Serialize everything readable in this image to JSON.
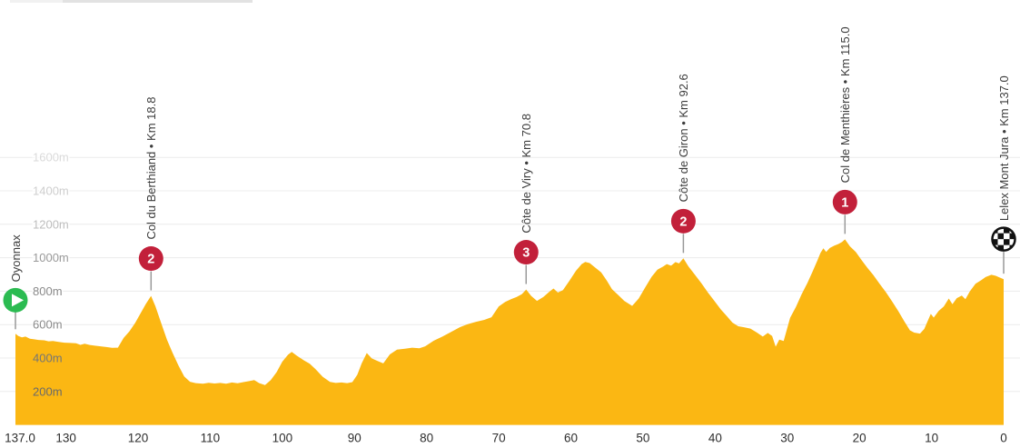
{
  "page": {
    "background": "#ffffff"
  },
  "colors": {
    "profile_fill": "#FBB713",
    "badge_red": "#C2203A",
    "start_green": "#2BBB51",
    "grid_line": "#ECECEC",
    "marker_stem": "#999999",
    "climb_label_text": "#3C3C3C",
    "x_axis_text": "#2E2E2E",
    "finish_flag_dark": "#111111"
  },
  "chart_data": {
    "type": "area",
    "title": "",
    "xlabel": "",
    "ylabel": "",
    "x_axis": {
      "total_km": 137,
      "direction": "km_remaining_left_to_right",
      "ticks": [
        {
          "label": "137.0",
          "remaining_km": 137
        },
        {
          "label": "130",
          "remaining_km": 130
        },
        {
          "label": "120",
          "remaining_km": 120
        },
        {
          "label": "110",
          "remaining_km": 110
        },
        {
          "label": "100",
          "remaining_km": 100
        },
        {
          "label": "90",
          "remaining_km": 90
        },
        {
          "label": "80",
          "remaining_km": 80
        },
        {
          "label": "70",
          "remaining_km": 70
        },
        {
          "label": "60",
          "remaining_km": 60
        },
        {
          "label": "50",
          "remaining_km": 50
        },
        {
          "label": "40",
          "remaining_km": 40
        },
        {
          "label": "30",
          "remaining_km": 30
        },
        {
          "label": "20",
          "remaining_km": 20
        },
        {
          "label": "10",
          "remaining_km": 10
        },
        {
          "label": "0",
          "remaining_km": 0
        }
      ]
    },
    "y_axis": {
      "unit": "m",
      "ticks": [
        {
          "label": "200m",
          "value": 200,
          "color": "#6a6a6a",
          "halo": false
        },
        {
          "label": "400m",
          "value": 400,
          "color": "#757575",
          "halo": false
        },
        {
          "label": "600m",
          "value": 600,
          "color": "#8a8a8a",
          "halo": true
        },
        {
          "label": "800m",
          "value": 800,
          "color": "#8a8a8a",
          "halo": true
        },
        {
          "label": "1000m",
          "value": 1000,
          "color": "#999999",
          "halo": true
        },
        {
          "label": "1200m",
          "value": 1200,
          "color": "#bdbdbd",
          "halo": true
        },
        {
          "label": "1400m",
          "value": 1400,
          "color": "#cecece",
          "halo": true
        },
        {
          "label": "1600m",
          "value": 1600,
          "color": "#dadada",
          "halo": true
        }
      ]
    },
    "start": {
      "name": "Oyonnax",
      "km": 0,
      "icon": "start-play-icon"
    },
    "finish": {
      "name": "Lelex Mont Jura",
      "km": 137.0,
      "label": "Lelex Mont Jura • Km 137.0",
      "icon": "finish-flag-icon"
    },
    "climbs": [
      {
        "name": "Col du Berthiand",
        "km": 18.8,
        "category": "2",
        "label": "Col du Berthiand • Km 18.8"
      },
      {
        "name": "Côte de Viry",
        "km": 70.8,
        "category": "3",
        "label": "Côte de Viry • Km 70.8"
      },
      {
        "name": "Côte de Giron",
        "km": 92.6,
        "category": "2",
        "label": "Côte de Giron • Km 92.6"
      },
      {
        "name": "Col de Menthières",
        "km": 115.0,
        "category": "1",
        "label": "Col de Menthières • Km 115.0"
      }
    ],
    "profile_points_km_elevation": [
      [
        0,
        545
      ],
      [
        0.4,
        532
      ],
      [
        0.9,
        524
      ],
      [
        1.4,
        528
      ],
      [
        2,
        515
      ],
      [
        2.6,
        512
      ],
      [
        3.2,
        508
      ],
      [
        4,
        506
      ],
      [
        4.6,
        500
      ],
      [
        5.2,
        502
      ],
      [
        6,
        496
      ],
      [
        6.8,
        492
      ],
      [
        7.6,
        490
      ],
      [
        8.4,
        488
      ],
      [
        9,
        479
      ],
      [
        9.6,
        486
      ],
      [
        10.3,
        478
      ],
      [
        11,
        474
      ],
      [
        11.8,
        470
      ],
      [
        12.6,
        466
      ],
      [
        13.4,
        461
      ],
      [
        14.2,
        462
      ],
      [
        15,
        520
      ],
      [
        15.8,
        560
      ],
      [
        16.6,
        610
      ],
      [
        17.4,
        672
      ],
      [
        18.1,
        725
      ],
      [
        18.8,
        772
      ],
      [
        19.4,
        710
      ],
      [
        20.2,
        610
      ],
      [
        21,
        510
      ],
      [
        21.8,
        430
      ],
      [
        22.6,
        355
      ],
      [
        23.4,
        290
      ],
      [
        24.2,
        258
      ],
      [
        25,
        250
      ],
      [
        26,
        247
      ],
      [
        26.8,
        252
      ],
      [
        27.6,
        248
      ],
      [
        28.4,
        251
      ],
      [
        29.2,
        246
      ],
      [
        30,
        254
      ],
      [
        30.8,
        249
      ],
      [
        31.6,
        256
      ],
      [
        32.4,
        262
      ],
      [
        33.1,
        268
      ],
      [
        33.8,
        250
      ],
      [
        34.6,
        238
      ],
      [
        35.4,
        268
      ],
      [
        36.2,
        315
      ],
      [
        37,
        378
      ],
      [
        37.8,
        420
      ],
      [
        38.3,
        437
      ],
      [
        39,
        414
      ],
      [
        40,
        386
      ],
      [
        40.8,
        366
      ],
      [
        41.6,
        333
      ],
      [
        42.6,
        288
      ],
      [
        43.6,
        257
      ],
      [
        44.4,
        251
      ],
      [
        45.2,
        254
      ],
      [
        46,
        250
      ],
      [
        46.7,
        256
      ],
      [
        47.4,
        300
      ],
      [
        48,
        368
      ],
      [
        48.7,
        430
      ],
      [
        49.4,
        398
      ],
      [
        50.2,
        382
      ],
      [
        51,
        368
      ],
      [
        51.9,
        422
      ],
      [
        52.9,
        450
      ],
      [
        54,
        456
      ],
      [
        55,
        462
      ],
      [
        56,
        458
      ],
      [
        56.8,
        470
      ],
      [
        58,
        504
      ],
      [
        59.2,
        528
      ],
      [
        60.4,
        556
      ],
      [
        61.6,
        584
      ],
      [
        62.7,
        602
      ],
      [
        63.8,
        616
      ],
      [
        65,
        628
      ],
      [
        66,
        644
      ],
      [
        67,
        708
      ],
      [
        67.9,
        736
      ],
      [
        68.7,
        752
      ],
      [
        69.5,
        766
      ],
      [
        70.2,
        782
      ],
      [
        70.8,
        810
      ],
      [
        71.5,
        772
      ],
      [
        72.3,
        742
      ],
      [
        73.2,
        766
      ],
      [
        74,
        796
      ],
      [
        74.6,
        816
      ],
      [
        75.2,
        792
      ],
      [
        75.9,
        806
      ],
      [
        76.8,
        862
      ],
      [
        77.7,
        922
      ],
      [
        78.5,
        962
      ],
      [
        79,
        975
      ],
      [
        79.6,
        968
      ],
      [
        80.4,
        940
      ],
      [
        81.2,
        912
      ],
      [
        82,
        862
      ],
      [
        82.7,
        812
      ],
      [
        83.5,
        780
      ],
      [
        84.4,
        742
      ],
      [
        85.5,
        712
      ],
      [
        86.4,
        756
      ],
      [
        87.3,
        822
      ],
      [
        88.2,
        886
      ],
      [
        89,
        928
      ],
      [
        89.8,
        948
      ],
      [
        90.3,
        962
      ],
      [
        90.9,
        952
      ],
      [
        91.5,
        974
      ],
      [
        92,
        966
      ],
      [
        92.6,
        996
      ],
      [
        93.3,
        948
      ],
      [
        94.2,
        898
      ],
      [
        95.1,
        848
      ],
      [
        96,
        792
      ],
      [
        96.9,
        742
      ],
      [
        97.8,
        690
      ],
      [
        98.6,
        652
      ],
      [
        99.4,
        612
      ],
      [
        100.2,
        590
      ],
      [
        101,
        584
      ],
      [
        101.9,
        576
      ],
      [
        102.8,
        552
      ],
      [
        103.6,
        528
      ],
      [
        104.3,
        550
      ],
      [
        104.9,
        532
      ],
      [
        105.4,
        468
      ],
      [
        105.9,
        510
      ],
      [
        106.5,
        502
      ],
      [
        107.4,
        640
      ],
      [
        108.2,
        706
      ],
      [
        109,
        782
      ],
      [
        109.8,
        850
      ],
      [
        110.5,
        916
      ],
      [
        111.2,
        986
      ],
      [
        111.6,
        1028
      ],
      [
        112,
        1056
      ],
      [
        112.4,
        1034
      ],
      [
        112.9,
        1058
      ],
      [
        113.5,
        1072
      ],
      [
        114.1,
        1082
      ],
      [
        114.6,
        1094
      ],
      [
        115,
        1110
      ],
      [
        115.7,
        1068
      ],
      [
        116.5,
        1034
      ],
      [
        117.3,
        986
      ],
      [
        118.1,
        940
      ],
      [
        118.9,
        898
      ],
      [
        119.8,
        844
      ],
      [
        120.7,
        792
      ],
      [
        121.6,
        734
      ],
      [
        122.4,
        680
      ],
      [
        123.2,
        622
      ],
      [
        124,
        566
      ],
      [
        124.6,
        552
      ],
      [
        125.4,
        546
      ],
      [
        126,
        574
      ],
      [
        126.9,
        664
      ],
      [
        127.3,
        642
      ],
      [
        128,
        682
      ],
      [
        128.7,
        708
      ],
      [
        129.4,
        756
      ],
      [
        129.9,
        722
      ],
      [
        130.5,
        758
      ],
      [
        131.2,
        774
      ],
      [
        131.7,
        752
      ],
      [
        132.3,
        798
      ],
      [
        133.1,
        844
      ],
      [
        133.9,
        866
      ],
      [
        134.5,
        884
      ],
      [
        135.3,
        898
      ],
      [
        135.9,
        892
      ],
      [
        136.3,
        884
      ],
      [
        137,
        872
      ]
    ]
  }
}
